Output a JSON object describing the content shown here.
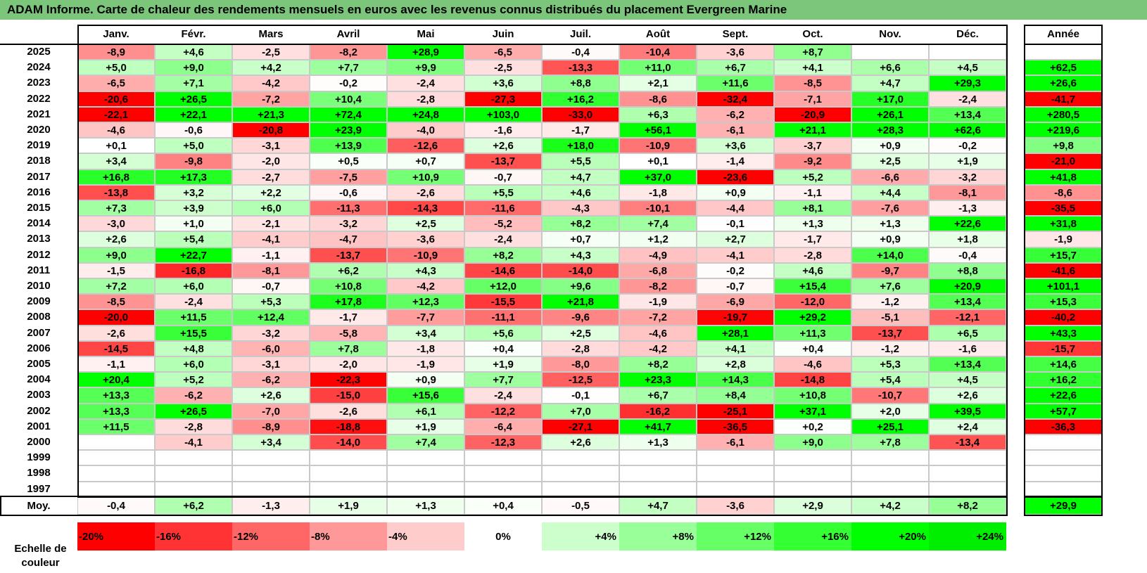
{
  "title": "ADAM Informe. Carte de chaleur des rendements mensuels en euros avec les revenus connus distribués du placement Evergreen Marine",
  "chart_data": {
    "type": "heatmap",
    "title": "ADAM Informe. Carte de chaleur des rendements mensuels en euros avec les revenus connus distribués du placement Evergreen Marine",
    "columns": [
      "Janv.",
      "Févr.",
      "Mars",
      "Avril",
      "Mai",
      "Juin",
      "Juil.",
      "Août",
      "Sept.",
      "Oct.",
      "Nov.",
      "Déc."
    ],
    "annual_header": "Année",
    "rows": [
      {
        "year": "2025",
        "values": [
          "-8,9",
          "+4,6",
          "-2,5",
          "-8,2",
          "+28,9",
          "-6,5",
          "-0,4",
          "-10,4",
          "-3,6",
          "+8,7",
          "",
          ""
        ],
        "annual": ""
      },
      {
        "year": "2024",
        "values": [
          "+5,0",
          "+9,0",
          "+4,2",
          "+7,7",
          "+9,9",
          "-2,5",
          "-13,3",
          "+11,0",
          "+6,7",
          "+4,1",
          "+6,6",
          "+4,5"
        ],
        "annual": "+62,5"
      },
      {
        "year": "2023",
        "values": [
          "-6,5",
          "+7,1",
          "-4,2",
          "-0,2",
          "-2,4",
          "+3,6",
          "+8,8",
          "+2,1",
          "+11,6",
          "-8,5",
          "+4,7",
          "+29,3"
        ],
        "annual": "+26,6"
      },
      {
        "year": "2022",
        "values": [
          "-20,6",
          "+26,5",
          "-7,2",
          "+10,4",
          "-2,8",
          "-27,3",
          "+16,2",
          "-8,6",
          "-32,4",
          "-7,1",
          "+17,0",
          "-2,4"
        ],
        "annual": "-41,7"
      },
      {
        "year": "2021",
        "values": [
          "-22,1",
          "+22,1",
          "+21,3",
          "+72,4",
          "+24,8",
          "+103,0",
          "-33,0",
          "+6,3",
          "-6,2",
          "-20,9",
          "+26,1",
          "+13,4"
        ],
        "annual": "+280,5"
      },
      {
        "year": "2020",
        "values": [
          "-4,6",
          "-0,6",
          "-20,8",
          "+23,9",
          "-4,0",
          "-1,6",
          "-1,7",
          "+56,1",
          "-6,1",
          "+21,1",
          "+28,3",
          "+62,6"
        ],
        "annual": "+219,6"
      },
      {
        "year": "2019",
        "values": [
          "+0,1",
          "+5,0",
          "-3,1",
          "+13,9",
          "-12,6",
          "+2,6",
          "+18,0",
          "-10,9",
          "+3,6",
          "-3,7",
          "+0,9",
          "-0,2"
        ],
        "annual": "+9,8"
      },
      {
        "year": "2018",
        "values": [
          "+3,4",
          "-9,8",
          "-2,0",
          "+0,5",
          "+0,7",
          "-13,7",
          "+5,5",
          "+0,1",
          "-1,4",
          "-9,2",
          "+2,5",
          "+1,9"
        ],
        "annual": "-21,0"
      },
      {
        "year": "2017",
        "values": [
          "+16,8",
          "+17,3",
          "-2,7",
          "-7,5",
          "+10,9",
          "-0,7",
          "+4,7",
          "+37,0",
          "-23,6",
          "+5,2",
          "-6,6",
          "-3,2"
        ],
        "annual": "+41,8"
      },
      {
        "year": "2016",
        "values": [
          "-13,8",
          "+3,2",
          "+2,2",
          "-0,6",
          "-2,6",
          "+5,5",
          "+4,6",
          "-1,8",
          "+0,9",
          "-1,1",
          "+4,4",
          "-8,1"
        ],
        "annual": "-8,6"
      },
      {
        "year": "2015",
        "values": [
          "+7,3",
          "+3,9",
          "+6,0",
          "-11,3",
          "-14,3",
          "-11,6",
          "-4,3",
          "-10,1",
          "-4,4",
          "+8,1",
          "-7,6",
          "-1,3"
        ],
        "annual": "-35,5"
      },
      {
        "year": "2014",
        "values": [
          "-3,0",
          "+1,0",
          "-2,1",
          "-3,2",
          "+2,5",
          "-5,2",
          "+8,2",
          "+7,4",
          "-0,1",
          "+1,3",
          "+1,3",
          "+22,6"
        ],
        "annual": "+31,8"
      },
      {
        "year": "2013",
        "values": [
          "+2,6",
          "+5,4",
          "-4,1",
          "-4,7",
          "-3,6",
          "-2,4",
          "+0,7",
          "+1,2",
          "+2,7",
          "-1,7",
          "+0,9",
          "+1,8"
        ],
        "annual": "-1,9"
      },
      {
        "year": "2012",
        "values": [
          "+9,0",
          "+22,7",
          "-1,1",
          "-13,7",
          "-10,9",
          "+8,2",
          "+4,3",
          "-4,9",
          "-4,1",
          "-2,8",
          "+14,0",
          "-0,4"
        ],
        "annual": "+15,7"
      },
      {
        "year": "2011",
        "values": [
          "-1,5",
          "-16,8",
          "-8,1",
          "+6,2",
          "+4,3",
          "-14,6",
          "-14,0",
          "-6,8",
          "-0,2",
          "+4,6",
          "-9,7",
          "+8,8"
        ],
        "annual": "-41,6"
      },
      {
        "year": "2010",
        "values": [
          "+7,2",
          "+6,0",
          "-0,7",
          "+10,8",
          "-4,2",
          "+12,0",
          "+9,6",
          "-8,2",
          "-0,7",
          "+15,4",
          "+7,6",
          "+20,9"
        ],
        "annual": "+101,1"
      },
      {
        "year": "2009",
        "values": [
          "-8,5",
          "-2,4",
          "+5,3",
          "+17,8",
          "+12,3",
          "-15,5",
          "+21,8",
          "-1,9",
          "-6,9",
          "-12,0",
          "-1,2",
          "+13,4"
        ],
        "annual": "+15,3"
      },
      {
        "year": "2008",
        "values": [
          "-20,0",
          "+11,5",
          "+12,4",
          "-1,7",
          "-7,7",
          "-11,1",
          "-9,6",
          "-7,2",
          "-19,7",
          "+29,2",
          "-5,1",
          "-12,1"
        ],
        "annual": "-40,2"
      },
      {
        "year": "2007",
        "values": [
          "-2,6",
          "+15,5",
          "-3,2",
          "-5,8",
          "+3,4",
          "+5,6",
          "+2,5",
          "-4,6",
          "+28,1",
          "+11,3",
          "-13,7",
          "+6,5"
        ],
        "annual": "+43,3"
      },
      {
        "year": "2006",
        "values": [
          "-14,5",
          "+4,8",
          "-6,0",
          "+7,8",
          "-1,8",
          "+0,4",
          "-2,8",
          "-4,2",
          "+4,1",
          "+0,4",
          "-1,2",
          "-1,6"
        ],
        "annual": "-15,7"
      },
      {
        "year": "2005",
        "values": [
          "-1,1",
          "+6,0",
          "-3,1",
          "-2,0",
          "-1,9",
          "+1,9",
          "-8,0",
          "+8,2",
          "+2,8",
          "-4,6",
          "+5,3",
          "+13,4"
        ],
        "annual": "+14,6"
      },
      {
        "year": "2004",
        "values": [
          "+20,4",
          "+5,2",
          "-6,2",
          "-22,3",
          "+0,9",
          "+7,7",
          "-12,5",
          "+23,3",
          "+14,3",
          "-14,8",
          "+5,4",
          "+4,5"
        ],
        "annual": "+16,2"
      },
      {
        "year": "2003",
        "values": [
          "+13,3",
          "-6,2",
          "+2,6",
          "-15,0",
          "+15,6",
          "-2,4",
          "-0,1",
          "+6,7",
          "+8,4",
          "+10,8",
          "-10,7",
          "+2,6"
        ],
        "annual": "+22,6"
      },
      {
        "year": "2002",
        "values": [
          "+13,3",
          "+26,5",
          "-7,0",
          "-2,6",
          "+6,1",
          "-12,2",
          "+7,0",
          "-16,2",
          "-25,1",
          "+37,1",
          "+2,0",
          "+39,5"
        ],
        "annual": "+57,7"
      },
      {
        "year": "2001",
        "values": [
          "+11,5",
          "-2,8",
          "-8,9",
          "-18,8",
          "+1,9",
          "-6,4",
          "-27,1",
          "+41,7",
          "-36,5",
          "+0,2",
          "+25,1",
          "+2,4"
        ],
        "annual": "-36,3"
      },
      {
        "year": "2000",
        "values": [
          "",
          "-4,1",
          "+3,4",
          "-14,0",
          "+7,4",
          "-12,3",
          "+2,6",
          "+1,3",
          "-6,1",
          "+9,0",
          "+7,8",
          "-13,4"
        ],
        "annual": ""
      },
      {
        "year": "1999",
        "values": [
          "",
          "",
          "",
          "",
          "",
          "",
          "",
          "",
          "",
          "",
          "",
          ""
        ],
        "annual": ""
      },
      {
        "year": "1998",
        "values": [
          "",
          "",
          "",
          "",
          "",
          "",
          "",
          "",
          "",
          "",
          "",
          ""
        ],
        "annual": ""
      },
      {
        "year": "1997",
        "values": [
          "",
          "",
          "",
          "",
          "",
          "",
          "",
          "",
          "",
          "",
          "",
          ""
        ],
        "annual": ""
      }
    ],
    "average": {
      "label": "Moy.",
      "values": [
        "-0,4",
        "+6,2",
        "-1,3",
        "+1,9",
        "+1,3",
        "+0,4",
        "-0,5",
        "+4,7",
        "-3,6",
        "+2,9",
        "+4,2",
        "+8,2"
      ],
      "annual": "+29,9"
    },
    "scale": {
      "label": "Echelle de couleur",
      "steps": [
        "-20%",
        "-16%",
        "-12%",
        "-8%",
        "-4%",
        "0%",
        "+4%",
        "+8%",
        "+12%",
        "+16%",
        "+20%",
        "+24%"
      ],
      "colors": [
        "#ff0000",
        "#ff3333",
        "#ff6666",
        "#ff9999",
        "#ffcccc",
        "#ffffff",
        "#ccffcc",
        "#99ff99",
        "#66ff66",
        "#33ff33",
        "#00ff00",
        "#00ee00"
      ]
    },
    "colors": {
      "negative": "#ff0000",
      "neutral": "#ffffff",
      "positive": "#00ff00",
      "title_bg": "#7cc67c"
    }
  }
}
